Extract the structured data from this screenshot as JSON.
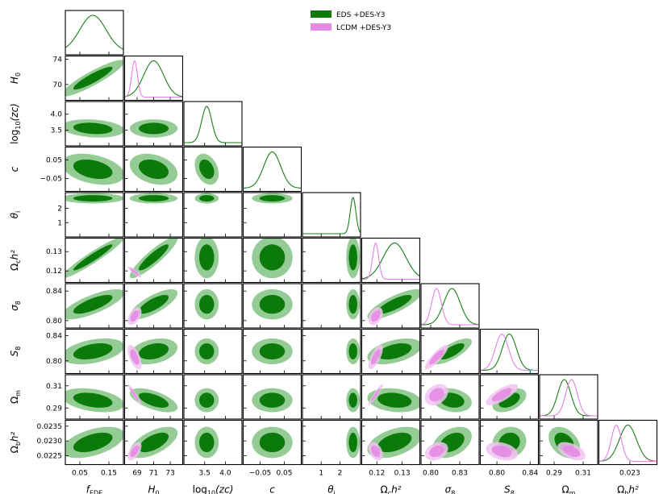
{
  "colors": {
    "eds_fill_outer": "#95cc95",
    "eds_fill_inner": "#0b7a0b",
    "eds_line": "#1a7f1a",
    "lcdm_fill_outer": "#f1c3f1",
    "lcdm_fill_inner": "#e68ae6",
    "lcdm_line": "#e580e5"
  },
  "legend": {
    "placement": "top-center",
    "entries": [
      {
        "name": "EDS +DES-Y3",
        "color": "#0b7a0b"
      },
      {
        "name": "LCDM +DES-Y3",
        "color": "#e68ae6"
      }
    ]
  },
  "chart_data": {
    "type": "corner",
    "parameters": [
      {
        "key": "fEDE",
        "label": "f",
        "sub": "EDE",
        "sup": "",
        "italic": true,
        "range": [
          0.0,
          0.2
        ],
        "ticks": [
          0.05,
          0.15
        ],
        "tick_labels": [
          "0.05",
          "0.15"
        ],
        "eds": {
          "mean": 0.095,
          "sd": 0.045
        },
        "lcdm": null
      },
      {
        "key": "H0",
        "label": "H",
        "sub": "0",
        "sup": "",
        "italic": true,
        "range": [
          67.5,
          74.5
        ],
        "ticks": [
          69,
          71,
          73
        ],
        "tick_labels": [
          "69",
          "71",
          "73"
        ],
        "ticks_y": [
          70,
          74
        ],
        "tick_labels_y": [
          "70",
          "74"
        ],
        "eds": {
          "mean": 71.0,
          "sd": 1.2
        },
        "lcdm": {
          "mean": 68.7,
          "sd": 0.35
        }
      },
      {
        "key": "logzc",
        "label": "log",
        "sub": "10",
        "sup": "",
        "extra": "(z_c)",
        "italic": false,
        "range": [
          3.0,
          4.4
        ],
        "ticks": [
          3.5,
          4.0
        ],
        "tick_labels": [
          "3.5",
          "4.0"
        ],
        "eds": {
          "mean": 3.55,
          "sd": 0.12
        },
        "lcdm": null
      },
      {
        "key": "c",
        "label": "c",
        "sub": "",
        "sup": "",
        "italic": true,
        "range": [
          -0.12,
          0.12
        ],
        "ticks": [
          -0.05,
          0.05
        ],
        "tick_labels": [
          "−0.05",
          "0.05"
        ],
        "eds": {
          "mean": 0.0,
          "sd": 0.035
        },
        "lcdm": null
      },
      {
        "key": "thetai",
        "label": "θ",
        "sub": "i",
        "sup": "",
        "italic": true,
        "range": [
          0.0,
          3.1
        ],
        "ticks": [
          1,
          2
        ],
        "tick_labels": [
          "1",
          "2"
        ],
        "eds": {
          "mean": 2.7,
          "sd": 0.15
        },
        "lcdm": null
      },
      {
        "key": "omch2",
        "label": "Ω",
        "sub": "c",
        "sup": "",
        "extra": "h²",
        "italic": false,
        "range": [
          0.114,
          0.137
        ],
        "ticks": [
          0.12,
          0.13
        ],
        "tick_labels": [
          "0.12",
          "0.13"
        ],
        "ticks_x_labels": [
          "0.12",
          "0.13"
        ],
        "eds": {
          "mean": 0.127,
          "sd": 0.0045
        },
        "lcdm": {
          "mean": 0.1195,
          "sd": 0.0012
        }
      },
      {
        "key": "sigma8",
        "label": "σ",
        "sub": "8",
        "sup": "",
        "italic": true,
        "range": [
          0.79,
          0.85
        ],
        "ticks": [
          0.8,
          0.84
        ],
        "tick_labels": [
          "0.80",
          "0.84"
        ],
        "ticks_x": [
          0.8,
          0.83
        ],
        "tick_labels_x": [
          "0.80",
          "0.83"
        ],
        "eds": {
          "mean": 0.822,
          "sd": 0.0085
        },
        "lcdm": {
          "mean": 0.806,
          "sd": 0.005
        }
      },
      {
        "key": "S8",
        "label": "S",
        "sub": "8",
        "sup": "",
        "italic": true,
        "range": [
          0.78,
          0.85
        ],
        "ticks": [
          0.8,
          0.84
        ],
        "tick_labels": [
          "0.80",
          "0.84"
        ],
        "eds": {
          "mean": 0.815,
          "sd": 0.0085
        },
        "lcdm": {
          "mean": 0.806,
          "sd": 0.008
        }
      },
      {
        "key": "Omegam",
        "label": "Ω",
        "sub": "m",
        "sup": "",
        "italic": false,
        "range": [
          0.28,
          0.32
        ],
        "ticks": [
          0.29,
          0.31
        ],
        "tick_labels": [
          "0.29",
          "0.31"
        ],
        "eds": {
          "mean": 0.297,
          "sd": 0.0045
        },
        "lcdm": {
          "mean": 0.302,
          "sd": 0.004
        }
      },
      {
        "key": "ombh2",
        "label": "Ω",
        "sub": "b",
        "sup": "",
        "extra": "h²",
        "italic": false,
        "range": [
          0.0222,
          0.0237
        ],
        "ticks": [
          0.0225,
          0.023,
          0.0235
        ],
        "tick_labels": [
          "0.0225",
          "0.0230",
          "0.0235"
        ],
        "ticks_x": [
          0.023
        ],
        "tick_labels_x": [
          "0.023"
        ],
        "eds": {
          "mean": 0.02295,
          "sd": 0.00022
        },
        "lcdm": {
          "mean": 0.02265,
          "sd": 0.00013
        }
      }
    ],
    "correlations": {
      "fEDE-H0": 0.9,
      "fEDE-omch2": 0.95,
      "fEDE-sigma8": 0.75,
      "fEDE-S8": 0.4,
      "fEDE-Omegam": -0.35,
      "fEDE-ombh2": 0.5,
      "H0-omch2": 0.9,
      "H0-sigma8": 0.75,
      "H0-S8": 0.3,
      "H0-Omegam": -0.6,
      "H0-ombh2": 0.6,
      "omch2-sigma8": 0.8,
      "omch2-S8": 0.45,
      "omch2-Omegam": -0.2,
      "omch2-ombh2": 0.45,
      "sigma8-S8": 0.75,
      "sigma8-Omegam": -0.2,
      "sigma8-ombh2": 0.4,
      "S8-Omegam": 0.45,
      "S8-ombh2": 0.1,
      "Omegam-ombh2": -0.35,
      "logzc-fEDE": -0.2,
      "c-fEDE": -0.35,
      "c-H0": -0.3,
      "c-logzc": -0.3
    },
    "lcdm_correlations": {
      "H0-omch2": -0.9,
      "H0-sigma8": 0.5,
      "H0-S8": -0.6,
      "H0-Omegam": -0.95,
      "H0-ombh2": 0.6,
      "omch2-sigma8": 0.4,
      "omch2-S8": 0.7,
      "omch2-Omegam": 0.95,
      "omch2-ombh2": -0.4,
      "sigma8-S8": 0.85,
      "sigma8-Omegam": 0.3,
      "sigma8-ombh2": 0.3,
      "S8-Omegam": 0.75,
      "S8-ombh2": -0.3,
      "Omegam-ombh2": -0.5
    }
  }
}
